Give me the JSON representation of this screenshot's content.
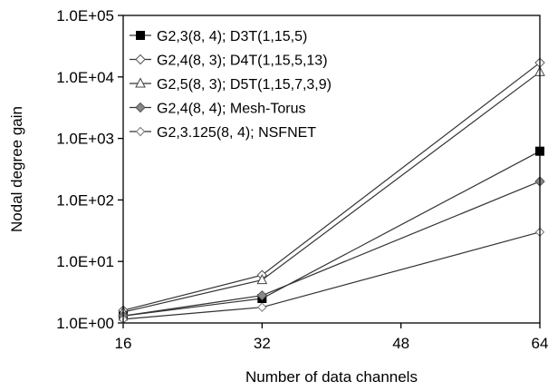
{
  "chart_data": {
    "type": "line",
    "xlabel": "Number of data channels",
    "ylabel": "Nodal degree gain",
    "xlim": [
      16,
      64
    ],
    "ylim": [
      1,
      100000
    ],
    "y_scale": "log",
    "x_ticks": [
      16,
      32,
      48,
      64
    ],
    "x_tick_labels": [
      "16",
      "32",
      "48",
      "64"
    ],
    "y_ticks": [
      1,
      10,
      100,
      1000,
      10000,
      100000
    ],
    "y_tick_labels": [
      "1.0E+00",
      "1.0E+01",
      "1.0E+02",
      "1.0E+03",
      "1.0E+04",
      "1.0E+05"
    ],
    "grid": false,
    "legend_position": "top-left",
    "x": [
      16,
      32,
      64
    ],
    "series": [
      {
        "name": "G2,3(8, 4); D3T(1,15,5)",
        "marker": "filled-square",
        "values": [
          1.3,
          2.5,
          620
        ]
      },
      {
        "name": "G2,4(8, 3); D4T(1,15,5,13)",
        "marker": "diamond",
        "values": [
          1.6,
          6.0,
          17000
        ]
      },
      {
        "name": "G2,5(8, 3); D5T(1,15,7,3,9)",
        "marker": "triangle",
        "values": [
          1.5,
          5.0,
          12000
        ]
      },
      {
        "name": "G2,4(8, 4); Mesh-Torus",
        "marker": "circle-diamond",
        "values": [
          1.3,
          2.8,
          200
        ]
      },
      {
        "name": "G2,3.125(8, 4); NSFNET",
        "marker": "small-diamond",
        "values": [
          1.15,
          1.8,
          30
        ]
      }
    ]
  }
}
